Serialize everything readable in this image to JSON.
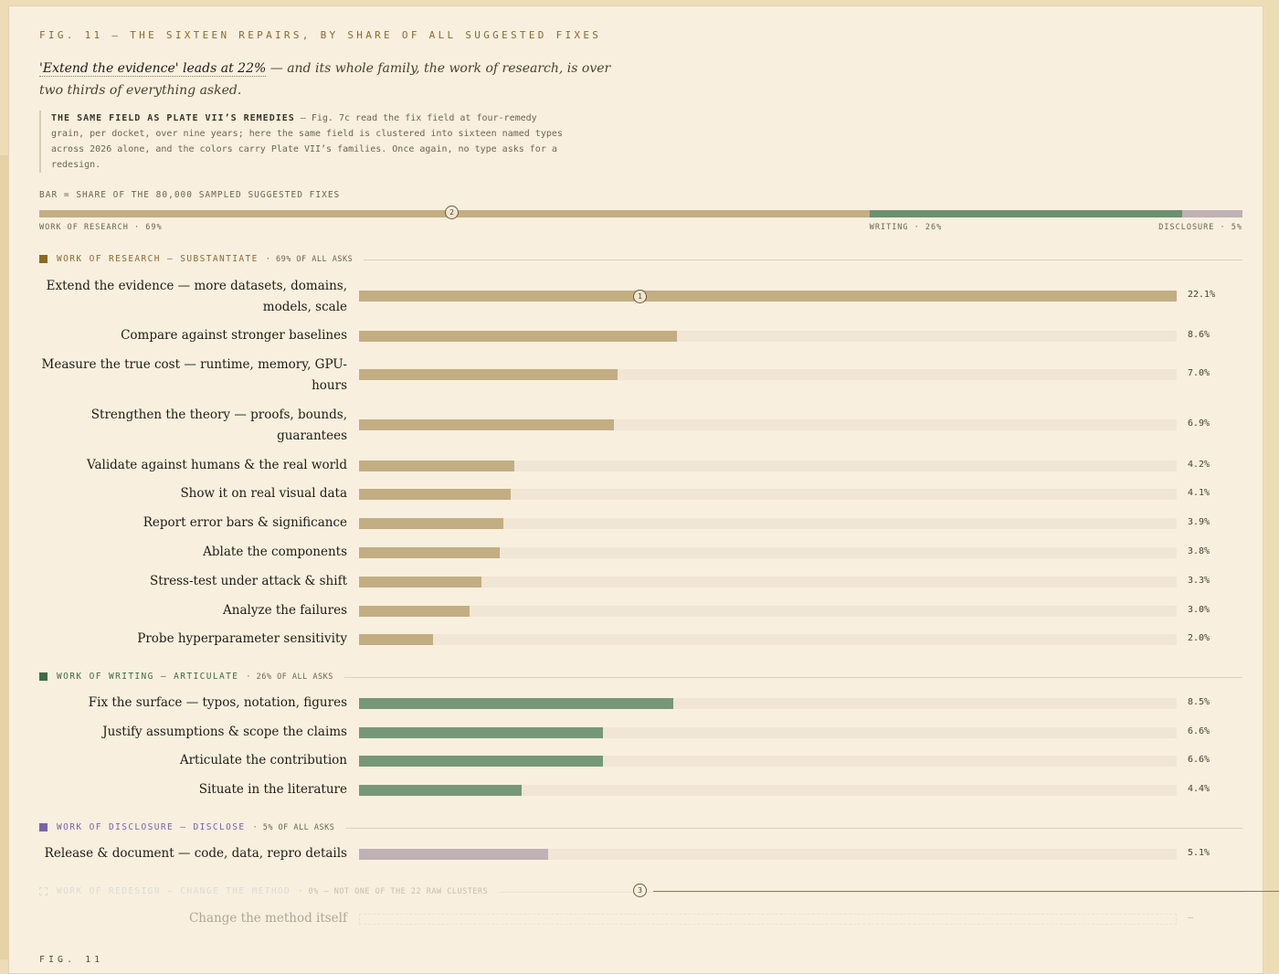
{
  "figure": {
    "title": "FIG. 11 — THE SIXTEEN REPAIRS, BY SHARE OF ALL SUGGESTED FIXES",
    "headline_lead": "'Extend the evidence' leads at 22%",
    "headline_rest": " — and its whole family, the work of research, is over two thirds of everything asked.",
    "note_head": "THE SAME FIELD AS PLATE VII’S REMEDIES",
    "note_body": " — Fig. 7c read the fix field at four-remedy grain, per docket, over nine years; here the same field is clustered into sixteen named types across 2026 alone, and the colors carry Plate VII’s families. Once again, no type asks for a redesign.",
    "bar_caption": "BAR = SHARE OF THE 80,000 SAMPLED SUGGESTED FIXES",
    "footer": "FIG. 11",
    "markers": [
      "2",
      "1",
      "3"
    ]
  },
  "colors": {
    "research": "#c2ae82",
    "research_swatch": "#8c6a1e",
    "research_text": "#8d6b2c",
    "writing": "#769878",
    "writing_bar": "#6a9170",
    "writing_swatch": "#3f6b48",
    "writing_text": "#3f6b48",
    "disclosure": "#bfb1b6",
    "disclosure_swatch": "#7a63a6",
    "disclosure_text": "#7a63a6",
    "redesign_text": "#a8b6c8"
  },
  "chart_data": [
    {
      "type": "bar",
      "orientation": "horizontal",
      "stacked": true,
      "title": "BAR = SHARE OF THE 80,000 SAMPLED SUGGESTED FIXES",
      "categories": [
        "WORK OF RESEARCH · 69%",
        "WRITING · 26%",
        "DISCLOSURE · 5%"
      ],
      "values": [
        69,
        26,
        5
      ]
    },
    {
      "type": "bar",
      "orientation": "horizontal",
      "xlim": [
        0,
        22.1
      ],
      "groups": [
        {
          "name": "WORK OF RESEARCH — SUBSTANTIATE",
          "share": "· 69% OF ALL ASKS",
          "family": "research",
          "items": [
            {
              "label": "Extend the evidence — more datasets, domains, models, scale",
              "value": 22.1,
              "display": "22.1%"
            },
            {
              "label": "Compare against stronger baselines",
              "value": 8.6,
              "display": "8.6%"
            },
            {
              "label": "Measure the true cost — runtime, memory, GPU-hours",
              "value": 7.0,
              "display": "7.0%"
            },
            {
              "label": "Strengthen the theory — proofs, bounds, guarantees",
              "value": 6.9,
              "display": "6.9%"
            },
            {
              "label": "Validate against humans & the real world",
              "value": 4.2,
              "display": "4.2%"
            },
            {
              "label": "Show it on real visual data",
              "value": 4.1,
              "display": "4.1%"
            },
            {
              "label": "Report error bars & significance",
              "value": 3.9,
              "display": "3.9%"
            },
            {
              "label": "Ablate the components",
              "value": 3.8,
              "display": "3.8%"
            },
            {
              "label": "Stress-test under attack & shift",
              "value": 3.3,
              "display": "3.3%"
            },
            {
              "label": "Analyze the failures",
              "value": 3.0,
              "display": "3.0%"
            },
            {
              "label": "Probe hyperparameter sensitivity",
              "value": 2.0,
              "display": "2.0%"
            }
          ]
        },
        {
          "name": "WORK OF WRITING — ARTICULATE",
          "share": "· 26% OF ALL ASKS",
          "family": "writing",
          "items": [
            {
              "label": "Fix the surface — typos, notation, figures",
              "value": 8.5,
              "display": "8.5%"
            },
            {
              "label": "Justify assumptions & scope the claims",
              "value": 6.6,
              "display": "6.6%"
            },
            {
              "label": "Articulate the contribution",
              "value": 6.6,
              "display": "6.6%"
            },
            {
              "label": "Situate in the literature",
              "value": 4.4,
              "display": "4.4%"
            }
          ]
        },
        {
          "name": "WORK OF DISCLOSURE — DISCLOSE",
          "share": "· 5% OF ALL ASKS",
          "family": "disclosure",
          "items": [
            {
              "label": "Release & document — code, data, repro details",
              "value": 5.1,
              "display": "5.1%"
            }
          ]
        },
        {
          "name": "WORK OF REDESIGN — CHANGE THE METHOD",
          "share": "· 0% — NOT ONE OF THE 22 RAW CLUSTERS",
          "family": "redesign",
          "items": [
            {
              "label": "Change the method itself",
              "value": 0,
              "display": "—"
            }
          ]
        }
      ]
    }
  ]
}
